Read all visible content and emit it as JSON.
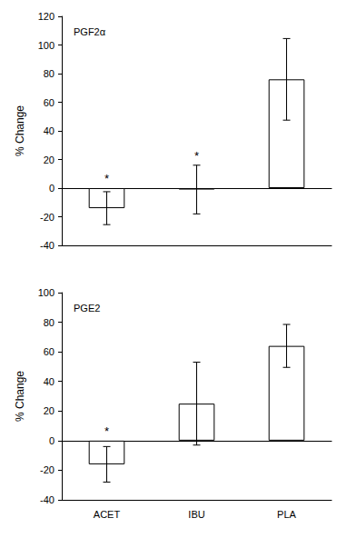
{
  "chart_data": [
    {
      "type": "bar",
      "title": "PGF2α",
      "ylabel": "% Change",
      "categories": [
        "ACET",
        "IBU",
        "PLA"
      ],
      "values": [
        -14,
        -1,
        76
      ],
      "errors": [
        11.5,
        17,
        28.5
      ],
      "color": "#ffffff",
      "ylim": [
        -40,
        120
      ],
      "yticks": [
        -40,
        -20,
        0,
        20,
        40,
        60,
        80,
        100,
        120
      ],
      "tick_labels": "y",
      "annotations": [
        {
          "text": "*",
          "category": "ACET"
        },
        {
          "text": "*",
          "category": "IBU"
        }
      ]
    },
    {
      "type": "bar",
      "title": "PGE2",
      "ylabel": "% Change",
      "categories": [
        "ACET",
        "IBU",
        "PLA"
      ],
      "values": [
        -16,
        25,
        64
      ],
      "errors": [
        12,
        28,
        14.5
      ],
      "color": "#ffffff",
      "ylim": [
        -40,
        100
      ],
      "yticks": [
        -40,
        -20,
        0,
        20,
        40,
        60,
        80,
        100
      ],
      "annotations": [
        {
          "text": "*",
          "category": "ACET"
        }
      ]
    }
  ]
}
